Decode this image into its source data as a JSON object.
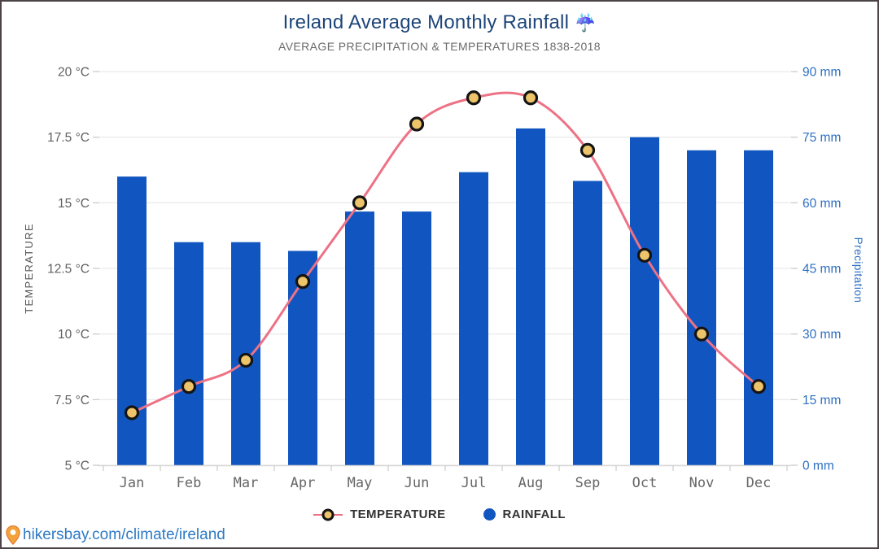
{
  "chart_data": {
    "type": "combo",
    "title": "Ireland Average Monthly Rainfall",
    "title_emoji": "☔",
    "subtitle": "AVERAGE PRECIPITATION & TEMPERATURES 1838-2018",
    "categories": [
      "Jan",
      "Feb",
      "Mar",
      "Apr",
      "May",
      "Jun",
      "Jul",
      "Aug",
      "Sep",
      "Oct",
      "Nov",
      "Dec"
    ],
    "series": [
      {
        "name": "RAINFALL",
        "type": "bar",
        "axis": "right",
        "unit": "mm",
        "color": "#1156c0",
        "values": [
          66,
          51,
          51,
          49,
          58,
          58,
          67,
          77,
          65,
          75,
          72,
          72
        ]
      },
      {
        "name": "TEMPERATURE",
        "type": "line",
        "axis": "left",
        "unit": "°C",
        "color": "#ed7285",
        "marker_fill": "#eec46a",
        "marker_stroke": "#141414",
        "values": [
          7,
          8,
          9,
          12,
          15,
          18,
          19,
          19,
          17,
          13,
          10,
          8
        ]
      }
    ],
    "left_axis": {
      "label": "TEMPERATURE",
      "min": 5,
      "max": 20,
      "ticks": [
        "20 °C",
        "17.5 °C",
        "15 °C",
        "12.5 °C",
        "10 °C",
        "7.5 °C",
        "5 °C"
      ],
      "color": "#5f5f5f"
    },
    "right_axis": {
      "label": "Precipitation",
      "min": 0,
      "max": 90,
      "ticks": [
        "90 mm",
        "75 mm",
        "60 mm",
        "45 mm",
        "30 mm",
        "15 mm",
        "0 mm"
      ],
      "color": "#2d6fc1"
    },
    "grid": "horizontal",
    "gridline_color": "#ebebeb",
    "axis_line_color": "#d8d8d8",
    "legend_position": "bottom"
  },
  "footer": {
    "link": "hikersbay.com/climate/ireland"
  }
}
